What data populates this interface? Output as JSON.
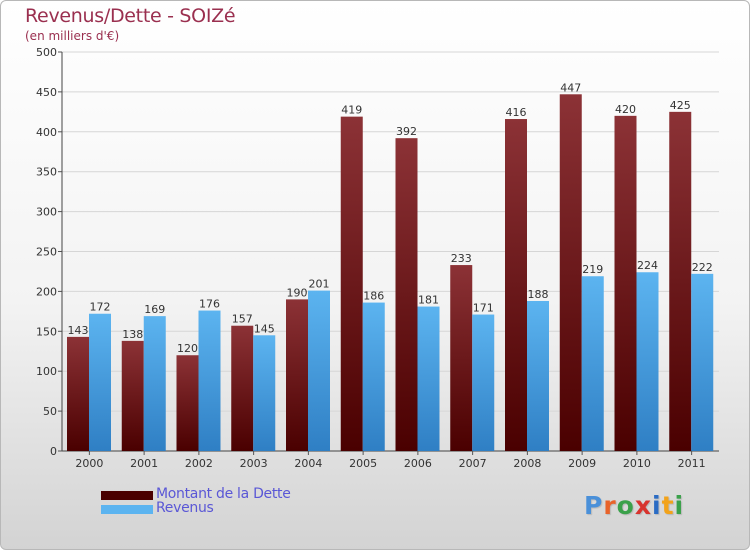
{
  "title": "Revenus/Dette - SOIZé",
  "subtitle": "(en milliers d'€)",
  "colors": {
    "title": "#9a2f4f",
    "dette_top": "#8c3236",
    "dette_bottom": "#4a0000",
    "revenus_top": "#5cb4f0",
    "revenus_bottom": "#2f7fc4",
    "legend_text": "#5a57d6"
  },
  "legend": [
    {
      "label": "Montant de la Dette",
      "icon": "dark-red-swatch"
    },
    {
      "label": "Revenus",
      "icon": "blue-swatch"
    }
  ],
  "logo": {
    "text": "Proxiti",
    "icon": "proxiti-logo"
  },
  "chart_data": {
    "type": "bar",
    "title": "Revenus/Dette - SOIZé",
    "subtitle": "(en milliers d'€)",
    "categories": [
      "2000",
      "2001",
      "2002",
      "2003",
      "2004",
      "2005",
      "2006",
      "2007",
      "2008",
      "2009",
      "2010",
      "2011"
    ],
    "series": [
      {
        "name": "Montant de la Dette",
        "values": [
          143,
          138,
          120,
          157,
          190,
          419,
          392,
          233,
          416,
          447,
          420,
          425
        ]
      },
      {
        "name": "Revenus",
        "values": [
          172,
          169,
          176,
          145,
          201,
          186,
          181,
          171,
          188,
          219,
          224,
          222
        ]
      }
    ],
    "yticks": [
      0,
      50,
      100,
      150,
      200,
      250,
      300,
      350,
      400,
      450,
      500
    ],
    "ylim": [
      0,
      500
    ],
    "grid": true,
    "legend_position": "bottom-left"
  }
}
